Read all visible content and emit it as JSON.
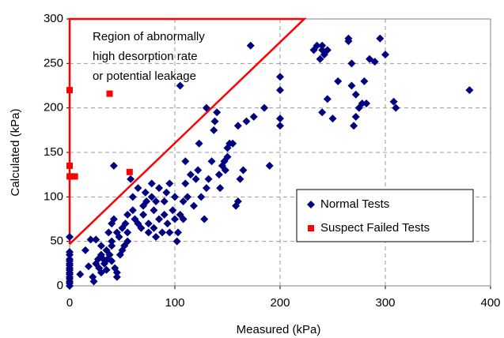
{
  "chart_data": {
    "type": "scatter",
    "xlabel": "Measured (kPa)",
    "ylabel": "Calculated (kPa)",
    "annotation": [
      "Region of abnormally",
      "high desorption rate",
      "or potential leakage"
    ],
    "xlim": [
      0,
      400
    ],
    "ylim": [
      0,
      300
    ],
    "xticks": [
      0,
      100,
      200,
      300,
      400
    ],
    "yticks": [
      0,
      50,
      100,
      150,
      200,
      250,
      300
    ],
    "grid": true,
    "legend": "lower right",
    "region": {
      "color": "#ff0000",
      "x": [
        0,
        0,
        223,
        0
      ],
      "y": [
        47,
        300,
        300,
        47
      ]
    },
    "series": [
      {
        "name": "Normal Tests",
        "color": "#000080",
        "marker": "diamond",
        "x": [
          0,
          0,
          0,
          0,
          0,
          0,
          0,
          0,
          0,
          0,
          0,
          0,
          0,
          0,
          0,
          0,
          10,
          15,
          18,
          20,
          22,
          23,
          25,
          25,
          27,
          28,
          30,
          30,
          30,
          32,
          33,
          35,
          35,
          36,
          37,
          38,
          40,
          40,
          40,
          40,
          42,
          42,
          43,
          45,
          45,
          45,
          47,
          48,
          50,
          50,
          52,
          53,
          55,
          55,
          55,
          58,
          60,
          60,
          62,
          65,
          65,
          68,
          70,
          70,
          72,
          73,
          75,
          75,
          78,
          78,
          80,
          80,
          82,
          82,
          85,
          85,
          88,
          90,
          90,
          92,
          93,
          95,
          95,
          98,
          100,
          100,
          102,
          103,
          105,
          105,
          108,
          108,
          110,
          110,
          112,
          115,
          118,
          120,
          122,
          123,
          125,
          128,
          130,
          130,
          132,
          135,
          137,
          138,
          140,
          142,
          143,
          145,
          147,
          148,
          150,
          150,
          152,
          155,
          158,
          160,
          160,
          162,
          165,
          168,
          172,
          175,
          185,
          190,
          200,
          200,
          200,
          200,
          232,
          235,
          238,
          240,
          240,
          240,
          242,
          245,
          245,
          250,
          255,
          265,
          265,
          268,
          268,
          270,
          272,
          272,
          275,
          278,
          280,
          282,
          285,
          290,
          295,
          300,
          308,
          310,
          380
        ],
        "y": [
          0,
          3,
          5,
          8,
          10,
          13,
          15,
          18,
          20,
          23,
          25,
          28,
          30,
          35,
          38,
          55,
          13,
          40,
          22,
          52,
          10,
          5,
          52,
          25,
          30,
          20,
          45,
          35,
          15,
          30,
          25,
          40,
          18,
          30,
          60,
          35,
          28,
          70,
          45,
          50,
          75,
          135,
          20,
          15,
          10,
          60,
          55,
          35,
          65,
          40,
          45,
          70,
          80,
          50,
          60,
          120,
          100,
          85,
          75,
          70,
          110,
          65,
          90,
          80,
          105,
          95,
          70,
          60,
          115,
          100,
          85,
          65,
          95,
          55,
          110,
          75,
          60,
          80,
          95,
          105,
          70,
          60,
          115,
          85,
          100,
          75,
          50,
          60,
          80,
          225,
          75,
          95,
          115,
          140,
          100,
          125,
          90,
          120,
          130,
          160,
          100,
          75,
          110,
          200,
          120,
          140,
          175,
          185,
          195,
          125,
          110,
          135,
          140,
          130,
          155,
          145,
          160,
          160,
          90,
          95,
          180,
          120,
          130,
          185,
          270,
          190,
          200,
          135,
          235,
          220,
          188,
          180,
          265,
          270,
          255,
          270,
          265,
          195,
          260,
          210,
          265,
          188,
          230,
          278,
          275,
          250,
          225,
          180,
          190,
          215,
          200,
          205,
          230,
          205,
          255,
          252,
          278,
          260,
          207,
          200,
          220
        ]
      },
      {
        "name": "Suspect Failed Tests",
        "color": "#ff0000",
        "marker": "square",
        "x": [
          0,
          0,
          0,
          2,
          5,
          38,
          57
        ],
        "y": [
          220,
          135,
          123,
          123,
          123,
          216,
          128
        ]
      }
    ]
  }
}
